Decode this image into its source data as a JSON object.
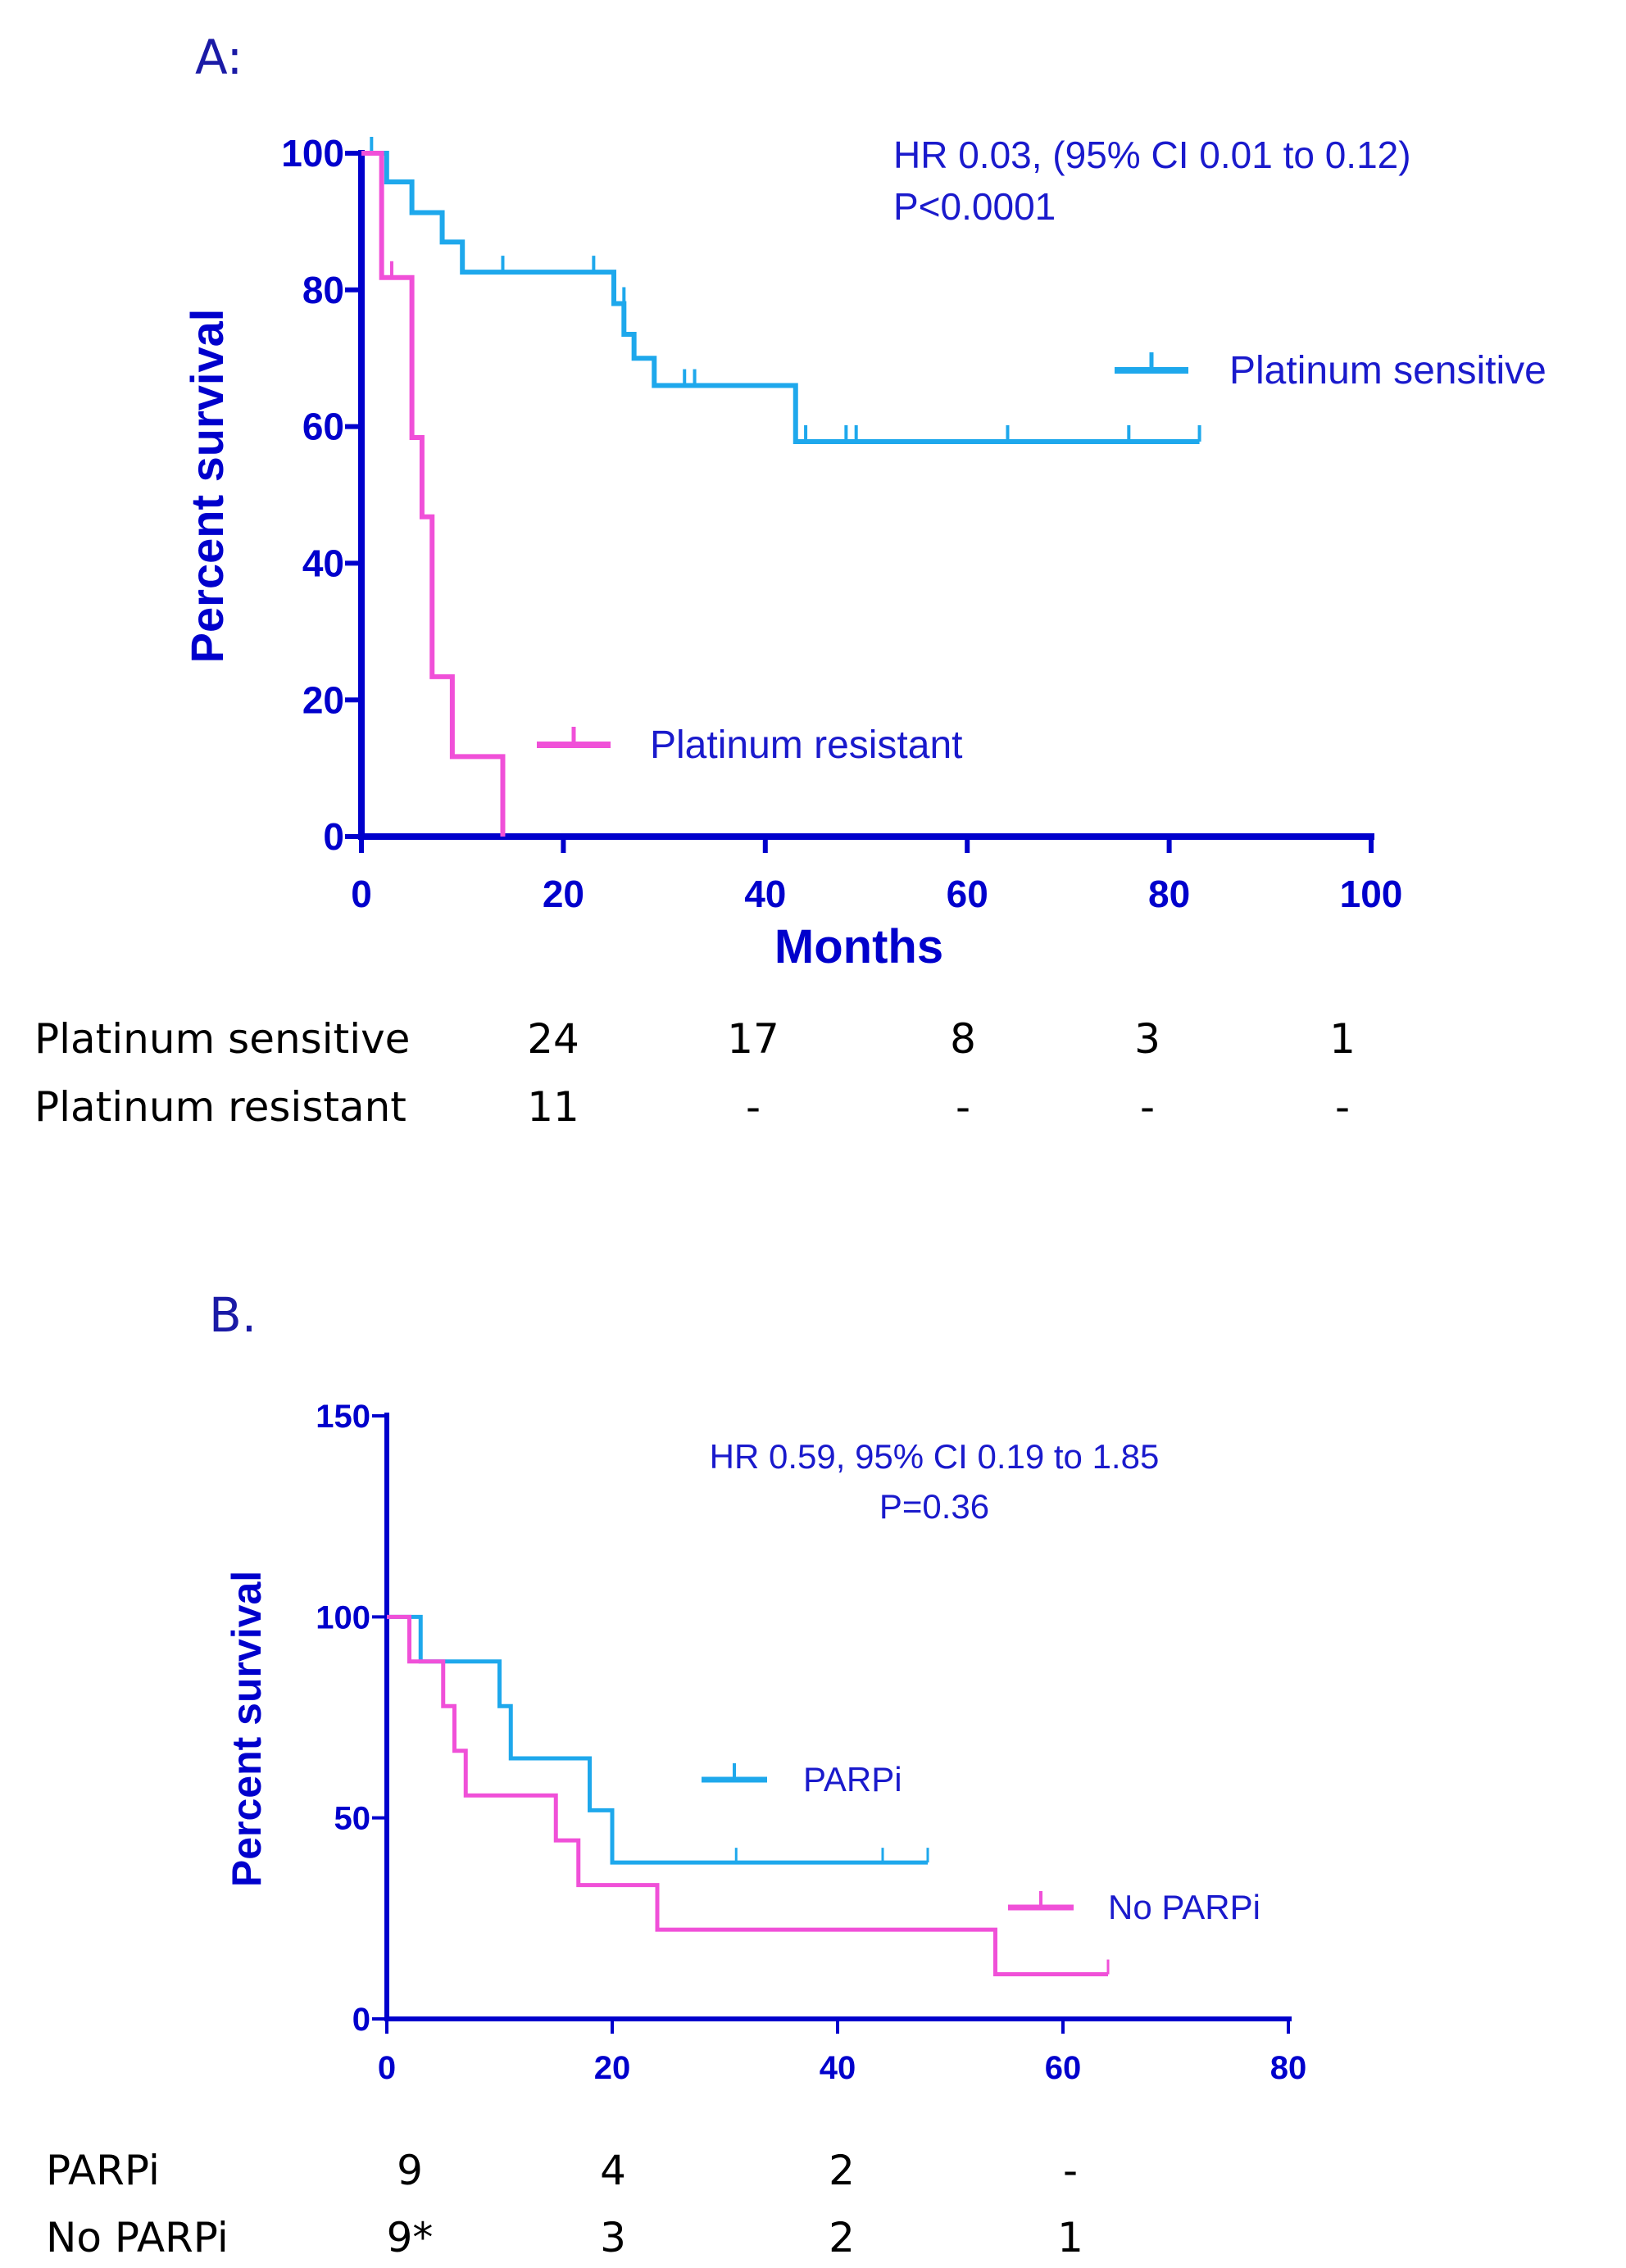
{
  "chart_data": [
    {
      "panel": "A:",
      "type": "line",
      "subtype": "kaplan-meier",
      "xlabel": "Months",
      "ylabel": "Percent survival",
      "xlim": [
        0,
        100
      ],
      "ylim": [
        0,
        100
      ],
      "xticks": [
        "0",
        "20",
        "40",
        "60",
        "80",
        "100"
      ],
      "yticks": [
        "0",
        "20",
        "40",
        "60",
        "80",
        "100"
      ],
      "annotation": [
        "HR 0.03, (95%  CI 0.01 to 0.12)",
        "P<0.0001"
      ],
      "series": [
        {
          "name": "Platinum sensitive",
          "color": "#1ea8ec",
          "steps": [
            [
              0,
              100
            ],
            [
              2.5,
              95.8
            ],
            [
              5,
              91.3
            ],
            [
              8,
              87
            ],
            [
              10,
              82.6
            ],
            [
              25,
              78
            ],
            [
              26,
              73.5
            ],
            [
              27,
              70
            ],
            [
              29,
              66
            ],
            [
              43,
              57.8
            ],
            [
              83,
              57.8
            ]
          ],
          "censored": [
            [
              1,
              100
            ],
            [
              14,
              82.6
            ],
            [
              23,
              82.6
            ],
            [
              26,
              78
            ],
            [
              32,
              66
            ],
            [
              33,
              66
            ],
            [
              44,
              57.8
            ],
            [
              48,
              57.8
            ],
            [
              49,
              57.8
            ],
            [
              64,
              57.8
            ],
            [
              76,
              57.8
            ],
            [
              83,
              57.8
            ]
          ]
        },
        {
          "name": "Platinum resistant",
          "color": "#f050d8",
          "steps": [
            [
              0,
              100
            ],
            [
              2,
              81.8
            ],
            [
              5,
              58.4
            ],
            [
              6,
              46.8
            ],
            [
              7,
              23.4
            ],
            [
              9,
              11.7
            ],
            [
              14,
              0
            ],
            [
              14,
              0
            ]
          ],
          "censored": [
            [
              3,
              81.8
            ]
          ]
        }
      ],
      "risk_table": {
        "times": [
          0,
          20,
          40,
          60,
          80
        ],
        "rows": [
          {
            "label": "Platinum sensitive",
            "values": [
              "24",
              "17",
              "8",
              "3",
              "1"
            ]
          },
          {
            "label": "Platinum resistant",
            "values": [
              "11",
              "-",
              "-",
              "-",
              "-"
            ]
          }
        ]
      }
    },
    {
      "panel": "B.",
      "type": "line",
      "subtype": "kaplan-meier",
      "xlabel": "",
      "ylabel": "Percent survival",
      "xlim": [
        0,
        80
      ],
      "ylim": [
        0,
        150
      ],
      "xticks": [
        "0",
        "20",
        "40",
        "60",
        "80"
      ],
      "yticks": [
        "0",
        "50",
        "100",
        "150"
      ],
      "annotation": [
        "HR 0.59, 95% CI 0.19 to 1.85",
        "P=0.36"
      ],
      "series": [
        {
          "name": "PARPi",
          "color": "#1ea8ec",
          "steps": [
            [
              0,
              100
            ],
            [
              3,
              88.9
            ],
            [
              10,
              77.8
            ],
            [
              11,
              64.8
            ],
            [
              18,
              51.9
            ],
            [
              20,
              38.9
            ],
            [
              48,
              38.9
            ]
          ],
          "censored": [
            [
              31,
              38.9
            ],
            [
              44,
              38.9
            ],
            [
              48,
              38.9
            ]
          ]
        },
        {
          "name": "No PARPi",
          "color": "#f050d8",
          "steps": [
            [
              0,
              100
            ],
            [
              2,
              88.9
            ],
            [
              5,
              77.8
            ],
            [
              6,
              66.7
            ],
            [
              7,
              55.6
            ],
            [
              15,
              44.4
            ],
            [
              17,
              33.3
            ],
            [
              24,
              22.2
            ],
            [
              54,
              11.1
            ],
            [
              64,
              11.1
            ]
          ],
          "censored": [
            [
              64,
              11.1
            ]
          ]
        }
      ],
      "risk_table": {
        "times": [
          0,
          20,
          40,
          60
        ],
        "rows": [
          {
            "label": "PARPi",
            "values": [
              "9",
              "4",
              "2",
              "-"
            ]
          },
          {
            "label": "No PARPi",
            "values": [
              "9*",
              "3",
              "2",
              "1"
            ]
          }
        ]
      }
    }
  ]
}
